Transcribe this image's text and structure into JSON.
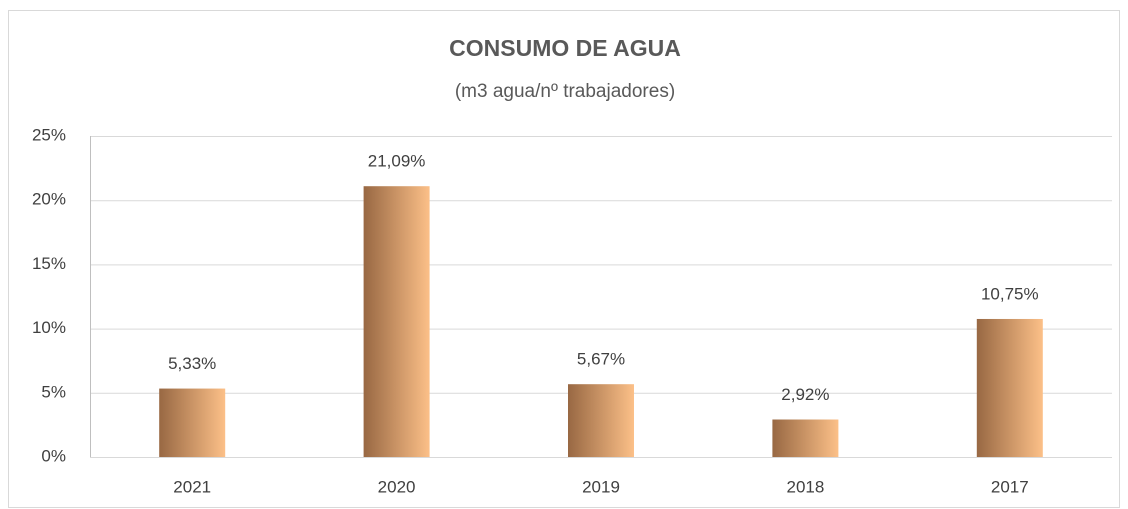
{
  "chart_data": {
    "type": "bar",
    "title": "CONSUMO DE AGUA",
    "subtitle": "(m3 agua/nº trabajadores)",
    "categories": [
      "2021",
      "2020",
      "2019",
      "2018",
      "2017"
    ],
    "values": [
      5.33,
      21.09,
      5.67,
      2.92,
      10.75
    ],
    "value_labels": [
      "5,33%",
      "21,09%",
      "5,67%",
      "2,92%",
      "10,75%"
    ],
    "gradient": [
      "#986843",
      "#fcc088"
    ],
    "ylim": [
      0,
      25
    ],
    "yticks": [
      {
        "value": 0,
        "label": "0%"
      },
      {
        "value": 5,
        "label": "5%"
      },
      {
        "value": 10,
        "label": "10%"
      },
      {
        "value": 15,
        "label": "15%"
      },
      {
        "value": 20,
        "label": "20%"
      },
      {
        "value": 25,
        "label": "25%"
      }
    ],
    "grid": true
  }
}
